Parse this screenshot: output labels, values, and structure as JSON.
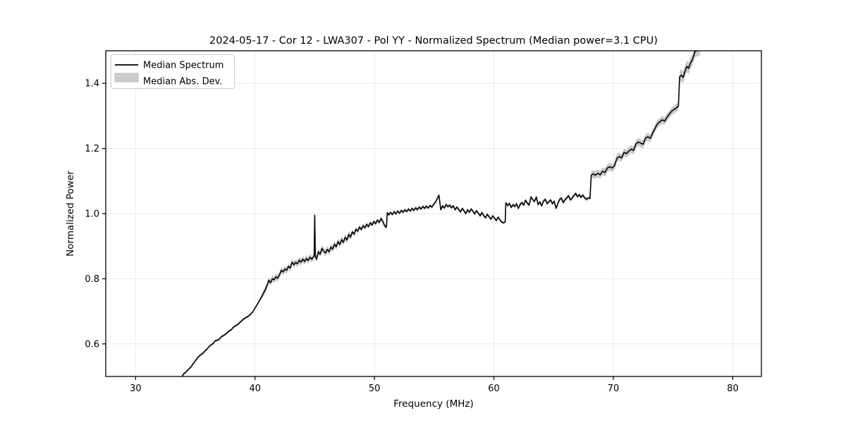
{
  "chart_data": {
    "type": "line",
    "title": "2024-05-17 - Cor 12 - LWA307 - Pol YY - Normalized Spectrum (Median power=3.1 CPU)",
    "xlabel": "Frequency (MHz)",
    "ylabel": "Normalized Power",
    "xlim": [
      27.5,
      82.4
    ],
    "ylim": [
      0.5,
      1.5
    ],
    "x_ticks": [
      30,
      40,
      50,
      60,
      70,
      80
    ],
    "x_tick_labels": [
      "30",
      "40",
      "50",
      "60",
      "70",
      "80"
    ],
    "y_ticks": [
      0.6,
      0.8,
      1.0,
      1.2,
      1.4
    ],
    "y_tick_labels": [
      "0.6",
      "0.8",
      "1.0",
      "1.2",
      "1.4"
    ],
    "grid": true,
    "line_color": "#000000",
    "band_color": "#c9c9c9",
    "grid_color": "#e8e8e8",
    "legend": {
      "position": "upper left",
      "entries": [
        {
          "label": "Median Spectrum",
          "type": "line",
          "color": "#000000"
        },
        {
          "label": "Median Abs. Dev.",
          "type": "patch",
          "color": "#cccccc"
        }
      ]
    },
    "series": [
      {
        "name": "Median Spectrum",
        "points": [
          [
            33.75,
            0.49
          ],
          [
            34.0,
            0.507
          ],
          [
            34.2,
            0.513
          ],
          [
            34.4,
            0.521
          ],
          [
            34.6,
            0.528
          ],
          [
            34.8,
            0.538
          ],
          [
            35.0,
            0.548
          ],
          [
            35.2,
            0.558
          ],
          [
            35.4,
            0.565
          ],
          [
            35.6,
            0.57
          ],
          [
            35.8,
            0.578
          ],
          [
            36.0,
            0.585
          ],
          [
            36.2,
            0.594
          ],
          [
            36.35,
            0.598
          ],
          [
            36.5,
            0.601
          ],
          [
            36.65,
            0.609
          ],
          [
            36.8,
            0.611
          ],
          [
            37.0,
            0.614
          ],
          [
            37.2,
            0.623
          ],
          [
            37.4,
            0.626
          ],
          [
            37.6,
            0.632
          ],
          [
            37.8,
            0.639
          ],
          [
            38.0,
            0.643
          ],
          [
            38.2,
            0.652
          ],
          [
            38.4,
            0.656
          ],
          [
            38.6,
            0.661
          ],
          [
            38.8,
            0.668
          ],
          [
            39.0,
            0.675
          ],
          [
            39.2,
            0.68
          ],
          [
            39.4,
            0.684
          ],
          [
            39.6,
            0.69
          ],
          [
            39.8,
            0.698
          ],
          [
            40.0,
            0.71
          ],
          [
            40.2,
            0.722
          ],
          [
            40.4,
            0.735
          ],
          [
            40.6,
            0.748
          ],
          [
            40.8,
            0.762
          ],
          [
            41.0,
            0.778
          ],
          [
            41.15,
            0.795
          ],
          [
            41.3,
            0.788
          ],
          [
            41.45,
            0.8
          ],
          [
            41.6,
            0.797
          ],
          [
            41.75,
            0.806
          ],
          [
            41.9,
            0.802
          ],
          [
            42.05,
            0.812
          ],
          [
            42.2,
            0.826
          ],
          [
            42.35,
            0.821
          ],
          [
            42.5,
            0.83
          ],
          [
            42.65,
            0.826
          ],
          [
            42.8,
            0.838
          ],
          [
            42.95,
            0.833
          ],
          [
            43.1,
            0.851
          ],
          [
            43.25,
            0.843
          ],
          [
            43.4,
            0.85
          ],
          [
            43.55,
            0.846
          ],
          [
            43.7,
            0.857
          ],
          [
            43.85,
            0.851
          ],
          [
            44.0,
            0.86
          ],
          [
            44.15,
            0.853
          ],
          [
            44.3,
            0.862
          ],
          [
            44.45,
            0.856
          ],
          [
            44.6,
            0.866
          ],
          [
            44.75,
            0.86
          ],
          [
            44.87,
            0.866
          ],
          [
            44.95,
            0.868
          ],
          [
            45.0,
            0.995
          ],
          [
            45.05,
            0.87
          ],
          [
            45.15,
            0.86
          ],
          [
            45.3,
            0.883
          ],
          [
            45.45,
            0.875
          ],
          [
            45.6,
            0.893
          ],
          [
            45.75,
            0.885
          ],
          [
            45.9,
            0.879
          ],
          [
            46.05,
            0.89
          ],
          [
            46.2,
            0.883
          ],
          [
            46.35,
            0.897
          ],
          [
            46.5,
            0.891
          ],
          [
            46.65,
            0.906
          ],
          [
            46.8,
            0.898
          ],
          [
            46.95,
            0.914
          ],
          [
            47.1,
            0.905
          ],
          [
            47.25,
            0.92
          ],
          [
            47.4,
            0.912
          ],
          [
            47.55,
            0.927
          ],
          [
            47.7,
            0.919
          ],
          [
            47.85,
            0.936
          ],
          [
            48.0,
            0.928
          ],
          [
            48.15,
            0.944
          ],
          [
            48.3,
            0.937
          ],
          [
            48.45,
            0.952
          ],
          [
            48.6,
            0.946
          ],
          [
            48.75,
            0.959
          ],
          [
            48.9,
            0.951
          ],
          [
            49.05,
            0.963
          ],
          [
            49.2,
            0.956
          ],
          [
            49.35,
            0.967
          ],
          [
            49.5,
            0.96
          ],
          [
            49.65,
            0.972
          ],
          [
            49.8,
            0.965
          ],
          [
            49.95,
            0.976
          ],
          [
            50.1,
            0.969
          ],
          [
            50.25,
            0.98
          ],
          [
            50.4,
            0.973
          ],
          [
            50.55,
            0.985
          ],
          [
            50.7,
            0.976
          ],
          [
            50.85,
            0.963
          ],
          [
            51.0,
            0.958
          ],
          [
            51.08,
            1.003
          ],
          [
            51.2,
            0.996
          ],
          [
            51.35,
            1.004
          ],
          [
            51.5,
            0.997
          ],
          [
            51.65,
            1.006
          ],
          [
            51.8,
            0.999
          ],
          [
            51.95,
            1.008
          ],
          [
            52.1,
            1.001
          ],
          [
            52.25,
            1.01
          ],
          [
            52.4,
            1.004
          ],
          [
            52.55,
            1.012
          ],
          [
            52.7,
            1.006
          ],
          [
            52.85,
            1.014
          ],
          [
            53.0,
            1.008
          ],
          [
            53.15,
            1.016
          ],
          [
            53.3,
            1.01
          ],
          [
            53.45,
            1.018
          ],
          [
            53.6,
            1.012
          ],
          [
            53.75,
            1.02
          ],
          [
            53.9,
            1.014
          ],
          [
            54.05,
            1.022
          ],
          [
            54.2,
            1.016
          ],
          [
            54.35,
            1.023
          ],
          [
            54.5,
            1.017
          ],
          [
            54.65,
            1.025
          ],
          [
            54.8,
            1.02
          ],
          [
            54.95,
            1.028
          ],
          [
            55.1,
            1.035
          ],
          [
            55.25,
            1.045
          ],
          [
            55.4,
            1.057
          ],
          [
            55.55,
            1.012
          ],
          [
            55.7,
            1.024
          ],
          [
            55.85,
            1.017
          ],
          [
            56.0,
            1.028
          ],
          [
            56.15,
            1.021
          ],
          [
            56.3,
            1.026
          ],
          [
            56.45,
            1.018
          ],
          [
            56.6,
            1.024
          ],
          [
            56.75,
            1.012
          ],
          [
            56.9,
            1.02
          ],
          [
            57.05,
            1.013
          ],
          [
            57.2,
            1.005
          ],
          [
            57.35,
            1.016
          ],
          [
            57.5,
            1.008
          ],
          [
            57.65,
            1.0
          ],
          [
            57.8,
            1.012
          ],
          [
            57.95,
            1.004
          ],
          [
            58.1,
            1.014
          ],
          [
            58.25,
            1.007
          ],
          [
            58.4,
            0.999
          ],
          [
            58.55,
            1.009
          ],
          [
            58.7,
            1.001
          ],
          [
            58.85,
            0.993
          ],
          [
            59.0,
            1.003
          ],
          [
            59.15,
            0.994
          ],
          [
            59.3,
            0.987
          ],
          [
            59.45,
            0.998
          ],
          [
            59.6,
            0.99
          ],
          [
            59.75,
            0.983
          ],
          [
            59.9,
            0.993
          ],
          [
            60.05,
            0.986
          ],
          [
            60.2,
            0.979
          ],
          [
            60.35,
            0.989
          ],
          [
            60.5,
            0.981
          ],
          [
            60.65,
            0.974
          ],
          [
            60.8,
            0.972
          ],
          [
            60.95,
            0.974
          ],
          [
            61.0,
            1.033
          ],
          [
            61.15,
            1.025
          ],
          [
            61.3,
            1.031
          ],
          [
            61.45,
            1.019
          ],
          [
            61.6,
            1.027
          ],
          [
            61.75,
            1.022
          ],
          [
            61.9,
            1.03
          ],
          [
            62.05,
            1.016
          ],
          [
            62.2,
            1.028
          ],
          [
            62.35,
            1.034
          ],
          [
            62.5,
            1.026
          ],
          [
            62.65,
            1.041
          ],
          [
            62.8,
            1.032
          ],
          [
            62.95,
            1.026
          ],
          [
            63.1,
            1.051
          ],
          [
            63.25,
            1.043
          ],
          [
            63.4,
            1.037
          ],
          [
            63.55,
            1.051
          ],
          [
            63.7,
            1.028
          ],
          [
            63.85,
            1.036
          ],
          [
            64.0,
            1.024
          ],
          [
            64.15,
            1.038
          ],
          [
            64.3,
            1.044
          ],
          [
            64.45,
            1.031
          ],
          [
            64.6,
            1.036
          ],
          [
            64.75,
            1.042
          ],
          [
            64.9,
            1.03
          ],
          [
            65.05,
            1.038
          ],
          [
            65.2,
            1.016
          ],
          [
            65.35,
            1.03
          ],
          [
            65.5,
            1.043
          ],
          [
            65.65,
            1.048
          ],
          [
            65.8,
            1.034
          ],
          [
            65.95,
            1.042
          ],
          [
            66.1,
            1.048
          ],
          [
            66.25,
            1.055
          ],
          [
            66.4,
            1.042
          ],
          [
            66.55,
            1.048
          ],
          [
            66.7,
            1.055
          ],
          [
            66.85,
            1.062
          ],
          [
            67.0,
            1.052
          ],
          [
            67.15,
            1.058
          ],
          [
            67.3,
            1.05
          ],
          [
            67.45,
            1.057
          ],
          [
            67.6,
            1.048
          ],
          [
            67.75,
            1.044
          ],
          [
            67.9,
            1.048
          ],
          [
            68.05,
            1.047
          ],
          [
            68.15,
            1.118
          ],
          [
            68.3,
            1.122
          ],
          [
            68.5,
            1.118
          ],
          [
            68.7,
            1.124
          ],
          [
            68.9,
            1.119
          ],
          [
            69.1,
            1.13
          ],
          [
            69.3,
            1.126
          ],
          [
            69.5,
            1.14
          ],
          [
            69.7,
            1.144
          ],
          [
            69.9,
            1.14
          ],
          [
            70.1,
            1.147
          ],
          [
            70.3,
            1.17
          ],
          [
            70.5,
            1.175
          ],
          [
            70.7,
            1.171
          ],
          [
            70.9,
            1.188
          ],
          [
            71.1,
            1.184
          ],
          [
            71.3,
            1.192
          ],
          [
            71.5,
            1.198
          ],
          [
            71.7,
            1.194
          ],
          [
            71.9,
            1.214
          ],
          [
            72.1,
            1.22
          ],
          [
            72.3,
            1.216
          ],
          [
            72.5,
            1.213
          ],
          [
            72.7,
            1.232
          ],
          [
            72.9,
            1.236
          ],
          [
            73.1,
            1.231
          ],
          [
            73.3,
            1.248
          ],
          [
            73.5,
            1.262
          ],
          [
            73.7,
            1.276
          ],
          [
            73.9,
            1.282
          ],
          [
            74.1,
            1.288
          ],
          [
            74.3,
            1.284
          ],
          [
            74.5,
            1.296
          ],
          [
            74.7,
            1.306
          ],
          [
            74.9,
            1.315
          ],
          [
            75.1,
            1.32
          ],
          [
            75.3,
            1.325
          ],
          [
            75.45,
            1.33
          ],
          [
            75.55,
            1.42
          ],
          [
            75.7,
            1.425
          ],
          [
            75.85,
            1.418
          ],
          [
            76.0,
            1.437
          ],
          [
            76.15,
            1.452
          ],
          [
            76.3,
            1.446
          ],
          [
            76.45,
            1.462
          ],
          [
            76.6,
            1.47
          ],
          [
            76.75,
            1.487
          ],
          [
            76.85,
            1.498
          ],
          [
            77.0,
            1.5
          ],
          [
            77.2,
            1.502
          ],
          [
            77.4,
            1.53
          ]
        ]
      }
    ],
    "band": {
      "name": "Median Abs. Dev.",
      "delta_segments": [
        [
          33.5,
          40.5,
          0.004
        ],
        [
          40.5,
          48.0,
          0.01
        ],
        [
          44.9,
          45.1,
          0.012
        ],
        [
          48.0,
          51.0,
          0.007
        ],
        [
          51.0,
          61.0,
          0.005
        ],
        [
          61.0,
          68.1,
          0.006
        ],
        [
          68.1,
          75.5,
          0.012
        ],
        [
          75.5,
          77.5,
          0.018
        ]
      ]
    }
  }
}
